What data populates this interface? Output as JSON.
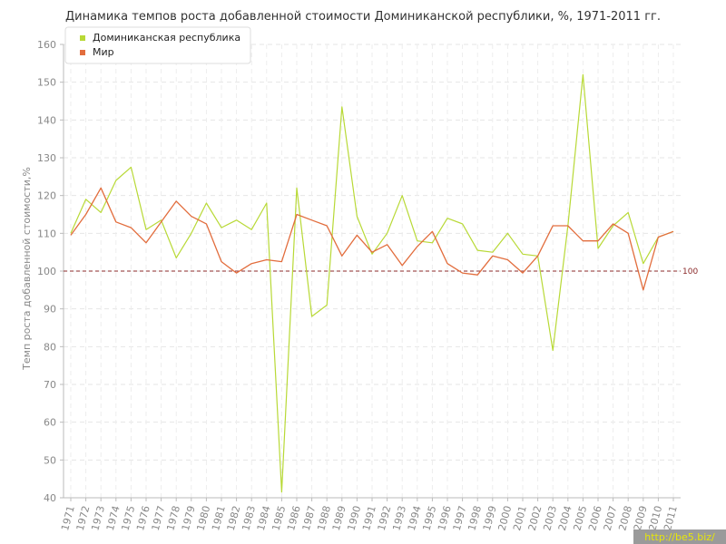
{
  "chart_data": {
    "type": "line",
    "title": "Динамика темпов роста добавленной стоимости Доминиканской республики, %, 1971-2011 гг.",
    "ylabel": "Темп роста добавленной стоимости,%",
    "xlabel": "",
    "ylim": [
      40,
      160
    ],
    "yticks": [
      40,
      50,
      60,
      70,
      80,
      90,
      100,
      110,
      120,
      130,
      140,
      150,
      160
    ],
    "categories": [
      "1971",
      "1972",
      "1973",
      "1974",
      "1975",
      "1976",
      "1977",
      "1978",
      "1979",
      "1980",
      "1981",
      "1982",
      "1983",
      "1984",
      "1985",
      "1986",
      "1987",
      "1988",
      "1989",
      "1990",
      "1991",
      "1992",
      "1993",
      "1994",
      "1995",
      "1996",
      "1997",
      "1998",
      "1999",
      "2000",
      "2001",
      "2002",
      "2003",
      "2004",
      "2005",
      "2006",
      "2007",
      "2008",
      "2009",
      "2010",
      "2011"
    ],
    "grid": true,
    "legend_position": "top-left",
    "reference_line": {
      "value": 100,
      "label": "100",
      "color": "#8b2a2a"
    },
    "series": [
      {
        "name": "Доминиканская республика",
        "color": "#b8d936",
        "values": [
          110,
          119,
          115.5,
          124,
          127.5,
          111,
          113.5,
          103.5,
          110,
          118,
          111.5,
          113.5,
          111,
          118,
          41.5,
          122,
          88,
          91,
          143.5,
          114.5,
          104.5,
          110,
          120,
          108,
          107.5,
          114,
          112.5,
          105.5,
          105,
          110,
          104.5,
          104,
          79,
          112,
          152,
          106,
          112,
          115.5,
          102,
          109,
          110.5
        ]
      },
      {
        "name": "Мир",
        "color": "#e26d3d",
        "values": [
          109.5,
          115,
          122,
          113,
          111.5,
          107.5,
          113,
          118.5,
          114.5,
          112.5,
          102.5,
          99.5,
          102,
          103,
          102.5,
          115,
          113.5,
          112,
          104,
          109.5,
          105,
          107,
          101.5,
          106.5,
          110.5,
          102,
          99.5,
          99,
          104,
          103,
          99.5,
          104,
          112,
          112,
          108,
          108,
          112.5,
          110,
          95,
          109,
          110.5
        ]
      }
    ]
  },
  "watermark": "http://be5.biz/"
}
